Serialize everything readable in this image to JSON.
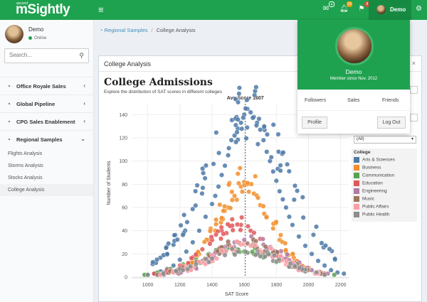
{
  "topbar": {
    "logo_small": "ascend",
    "logo": "mSightly",
    "badges": {
      "mail": "4",
      "alerts": "19",
      "flags": "8"
    },
    "user_name": "Demo",
    "colors": {
      "green": "#1fa24f",
      "badge_mail": "#1fa24f",
      "badge_alerts": "#f39c12",
      "badge_flags": "#dd4b39"
    }
  },
  "sidebar": {
    "user_name": "Demo",
    "status": "Online",
    "search_placeholder": "Search...",
    "menu": [
      {
        "label": "Office Royale Sales",
        "icon": "dashboard-icon",
        "chevron": "‹"
      },
      {
        "label": "Global Pipeline",
        "icon": "dashboard-icon",
        "chevron": "‹"
      },
      {
        "label": "CPG Sales Enablement",
        "icon": "dashboard-icon",
        "chevron": "‹"
      },
      {
        "label": "Regional Samples",
        "icon": "dashboard-icon",
        "chevron": "⌄"
      }
    ],
    "submenu": [
      "Flights Analysis",
      "Storms Analysis",
      "Stocks Analysis",
      "College Analysis"
    ]
  },
  "breadcrumb": {
    "link": "Regional Samples",
    "current": "College Analysis"
  },
  "panel": {
    "title": "College Analysis",
    "viz_title": "College Admissions",
    "viz_subtitle": "Explore the distribution of SAT scores in different colleges"
  },
  "filters": {
    "select_value": "(All)"
  },
  "legend": {
    "title": "College",
    "items": [
      {
        "label": "Arts & Sciences",
        "color": "#4e79a7"
      },
      {
        "label": "Business",
        "color": "#f28e2b"
      },
      {
        "label": "Communication",
        "color": "#59a14f"
      },
      {
        "label": "Education",
        "color": "#e15759"
      },
      {
        "label": "Engineering",
        "color": "#b07aa1"
      },
      {
        "label": "Music",
        "color": "#9c755f"
      },
      {
        "label": "Public Affairs",
        "color": "#ff9da7"
      },
      {
        "label": "Public Health",
        "color": "#8c8c8c"
      }
    ]
  },
  "user_menu": {
    "name": "Demo",
    "member_since": "Member since Nov. 2012",
    "links": [
      "Followers",
      "Sales",
      "Friends"
    ],
    "profile_label": "Profile",
    "logout_label": "Log Out"
  },
  "chart_data": {
    "type": "scatter",
    "title": "",
    "xlabel": "SAT Score",
    "ylabel": "Number of Students",
    "xlim": [
      900,
      2250
    ],
    "ylim": [
      0,
      150
    ],
    "x_ticks": [
      1000,
      1200,
      1400,
      1600,
      1800,
      2000,
      2200
    ],
    "y_ticks": [
      0,
      20,
      40,
      60,
      80,
      100,
      120,
      140
    ],
    "reference_line": {
      "label": "Avg Score 1607",
      "x": 1607
    },
    "grid": true,
    "series": [
      {
        "name": "Arts & Sciences",
        "color": "#4e79a7",
        "peak": 145,
        "center": 1620,
        "width": 260,
        "x": [
          1000,
          1040,
          1080,
          1120,
          1160,
          1200,
          1240,
          1280,
          1320,
          1360,
          1400,
          1420,
          1440,
          1460,
          1480,
          1500,
          1520,
          1540,
          1560,
          1580,
          1600,
          1620,
          1640,
          1660,
          1680,
          1700,
          1720,
          1740,
          1760,
          1780,
          1800,
          1820,
          1840,
          1860,
          1880,
          1900,
          1940,
          1980,
          2020,
          2060,
          2100,
          2140,
          2180,
          2220
        ],
        "y": [
          2,
          3,
          5,
          7,
          10,
          15,
          22,
          30,
          40,
          52,
          63,
          70,
          78,
          88,
          96,
          105,
          118,
          122,
          128,
          133,
          140,
          145,
          142,
          138,
          133,
          127,
          118,
          108,
          100,
          91,
          83,
          74,
          67,
          60,
          52,
          45,
          35,
          27,
          20,
          14,
          10,
          6,
          4,
          3
        ]
      },
      {
        "name": "Business",
        "color": "#f28e2b",
        "peak": 82,
        "center": 1600,
        "width": 170,
        "x": [
          1100,
          1180,
          1260,
          1320,
          1380,
          1420,
          1460,
          1500,
          1540,
          1580,
          1600,
          1620,
          1660,
          1700,
          1740,
          1780,
          1820,
          1860,
          1920,
          2000,
          2080
        ],
        "y": [
          3,
          6,
          12,
          20,
          32,
          40,
          50,
          60,
          70,
          78,
          82,
          80,
          72,
          62,
          52,
          42,
          32,
          22,
          14,
          8,
          4
        ]
      },
      {
        "name": "Communication",
        "color": "#59a14f",
        "peak": 25,
        "center": 1580,
        "width": 220,
        "x": [
          980,
          1060,
          1140,
          1220,
          1300,
          1380,
          1440,
          1500,
          1560,
          1600,
          1660,
          1720,
          1800,
          1880,
          1960,
          2060,
          2160
        ],
        "y": [
          2,
          4,
          7,
          11,
          15,
          20,
          23,
          25,
          24,
          22,
          20,
          17,
          13,
          9,
          6,
          4,
          2
        ]
      },
      {
        "name": "Education",
        "color": "#e15759",
        "peak": 45,
        "center": 1560,
        "width": 190,
        "x": [
          1040,
          1120,
          1200,
          1280,
          1340,
          1400,
          1460,
          1520,
          1580,
          1640,
          1700,
          1760,
          1840,
          1920,
          2000,
          2100
        ],
        "y": [
          3,
          6,
          10,
          17,
          24,
          32,
          40,
          44,
          45,
          40,
          33,
          25,
          16,
          10,
          6,
          3
        ]
      },
      {
        "name": "Engineering",
        "color": "#b07aa1",
        "peak": 32,
        "center": 1640,
        "width": 200,
        "x": [
          1100,
          1180,
          1260,
          1340,
          1420,
          1480,
          1540,
          1600,
          1660,
          1720,
          1780,
          1860,
          1940,
          2020,
          2120
        ],
        "y": [
          2,
          5,
          9,
          14,
          21,
          26,
          30,
          32,
          31,
          28,
          23,
          16,
          10,
          6,
          3
        ]
      },
      {
        "name": "Music",
        "color": "#9c755f",
        "peak": 30,
        "center": 1600,
        "width": 210,
        "x": [
          1060,
          1140,
          1220,
          1300,
          1380,
          1440,
          1500,
          1560,
          1620,
          1680,
          1740,
          1820,
          1900,
          1980,
          2080
        ],
        "y": [
          2,
          5,
          8,
          13,
          19,
          24,
          28,
          30,
          29,
          25,
          20,
          14,
          9,
          5,
          3
        ]
      },
      {
        "name": "Public Affairs",
        "color": "#ff9da7",
        "peak": 28,
        "center": 1620,
        "width": 200,
        "x": [
          1080,
          1160,
          1240,
          1320,
          1400,
          1460,
          1520,
          1580,
          1640,
          1700,
          1780,
          1860,
          1940,
          2040
        ],
        "y": [
          2,
          4,
          8,
          13,
          19,
          23,
          26,
          28,
          27,
          23,
          17,
          11,
          6,
          3
        ]
      },
      {
        "name": "Public Health",
        "color": "#8c8c8c",
        "peak": 22,
        "center": 1600,
        "width": 230,
        "x": [
          1000,
          1100,
          1200,
          1300,
          1400,
          1480,
          1560,
          1620,
          1700,
          1780,
          1880,
          1980,
          2100
        ],
        "y": [
          2,
          4,
          7,
          11,
          16,
          19,
          22,
          21,
          18,
          14,
          9,
          5,
          2
        ]
      }
    ]
  }
}
